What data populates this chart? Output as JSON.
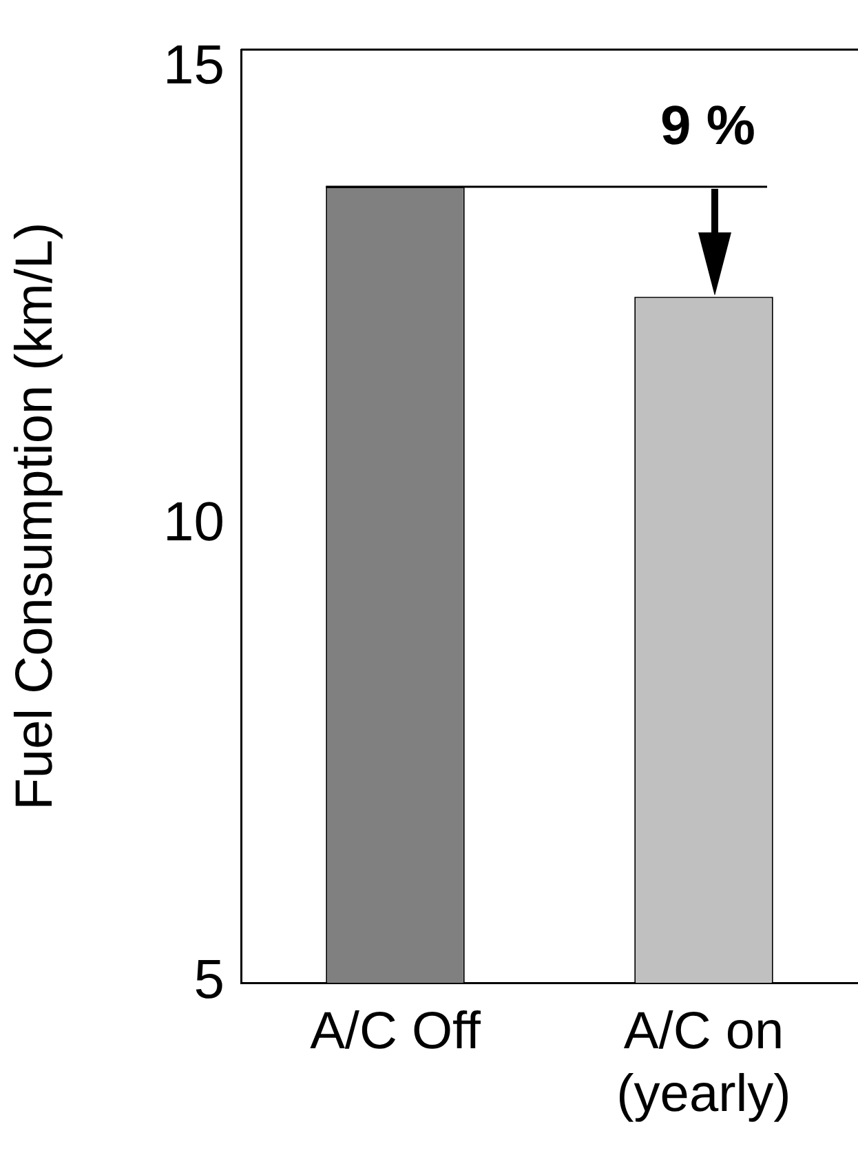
{
  "chart_data": {
    "type": "bar",
    "ylabel": "Fuel Consumption (km/L)",
    "categories": [
      "A/C Off",
      "A/C on\n(yearly)"
    ],
    "values": [
      13.7,
      12.5
    ],
    "colors": [
      "#808080",
      "#c0c0c0"
    ],
    "ylim": [
      5,
      15.2
    ],
    "yticks": [
      5,
      10,
      15
    ],
    "grid": false,
    "legend": false,
    "ref_lines": [
      {
        "axis": "y",
        "value": 13.7,
        "label": null
      }
    ],
    "annotations": [
      {
        "text": "9 %",
        "x": "A/C on\n(yearly)",
        "y": 13.7
      }
    ]
  }
}
